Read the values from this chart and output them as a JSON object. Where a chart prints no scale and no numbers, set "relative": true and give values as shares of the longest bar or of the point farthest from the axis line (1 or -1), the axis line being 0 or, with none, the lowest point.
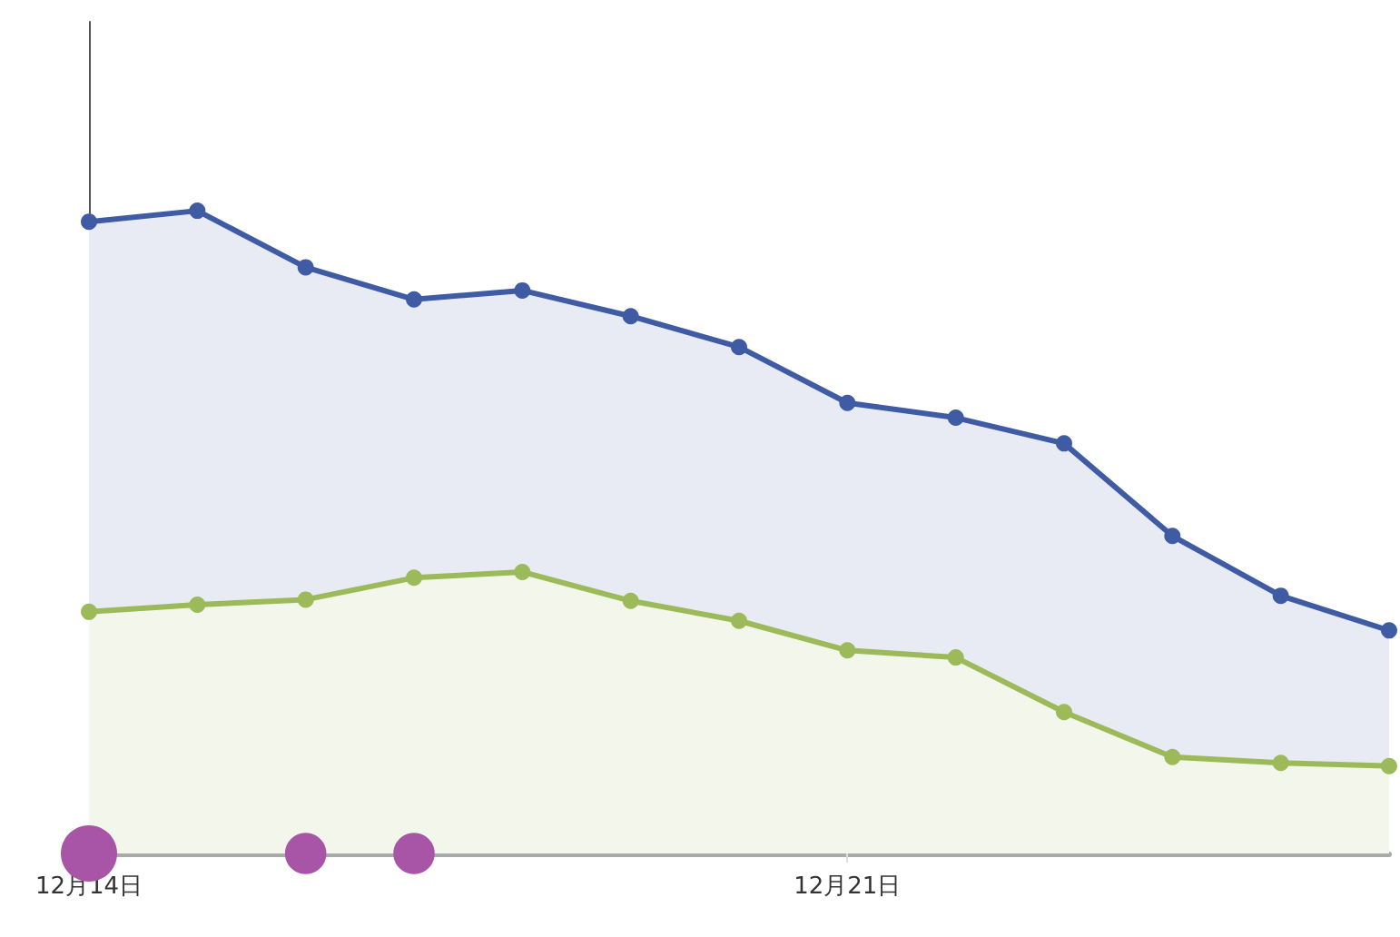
{
  "chart_data": {
    "type": "area",
    "relative": true,
    "grid": false,
    "marker": "circle",
    "line_style": "solid",
    "tick_labels": "x",
    "categories": [
      "12月14日",
      null,
      null,
      null,
      null,
      null,
      null,
      "12月21日",
      null,
      null,
      null,
      null,
      null
    ],
    "series": [
      {
        "color": "#3f5ba4",
        "values": [
          0.983,
          1,
          0.912,
          0.862,
          0.876,
          0.836,
          0.788,
          0.701,
          0.678,
          0.638,
          0.494,
          0.401,
          0.347
        ]
      },
      {
        "color": "#9cba5a",
        "values": [
          0.376,
          0.387,
          0.395,
          0.429,
          0.438,
          0.393,
          0.362,
          0.316,
          0.305,
          0.22,
          0.15,
          0.141,
          0.136
        ]
      },
      {
        "type": "bubble",
        "color": "#a855a8",
        "values": [
          0,
          null,
          0,
          0,
          null,
          null,
          null,
          null,
          null,
          null,
          null,
          null,
          null
        ],
        "sizes": [
          1,
          null,
          0.54,
          0.54,
          null,
          null,
          null,
          null,
          null,
          null,
          null,
          null,
          null
        ]
      }
    ]
  }
}
